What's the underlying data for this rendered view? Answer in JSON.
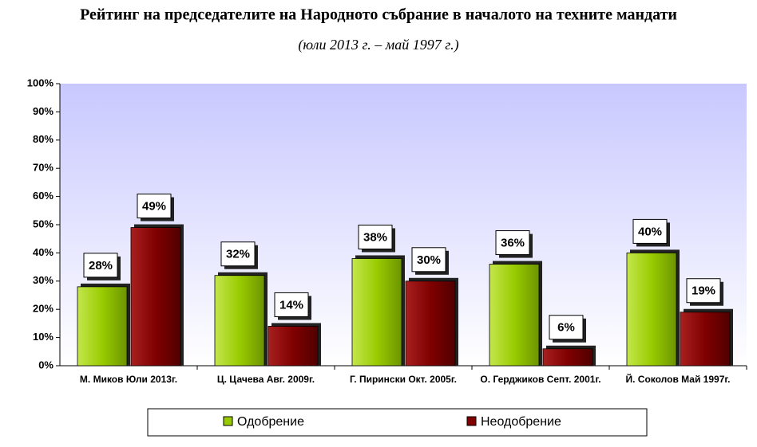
{
  "chart_data": {
    "type": "bar",
    "title": "Рейтинг на председателите на Народното събрание в началото на техните мандати",
    "subtitle": "(юли 2013 г. – май 1997 г.)",
    "categories": [
      "М. Миков Юли 2013г.",
      "Ц. Цачева Авг. 2009г.",
      "Г. Пирински Окт. 2005г.",
      "О. Герджиков Септ. 2001г.",
      "Й. Соколов Май 1997г."
    ],
    "series": [
      {
        "name": "Одобрение",
        "color": "#99cc00",
        "values": [
          28,
          32,
          38,
          36,
          40
        ],
        "value_labels": [
          "28%",
          "32%",
          "38%",
          "36%",
          "40%"
        ]
      },
      {
        "name": "Неодобрение",
        "color": "#800000",
        "values": [
          49,
          14,
          30,
          6,
          19
        ],
        "value_labels": [
          "49%",
          "14%",
          "30%",
          "6%",
          "19%"
        ]
      }
    ],
    "ylim": [
      0,
      100
    ],
    "yticks": [
      {
        "value": 0,
        "label": "0%"
      },
      {
        "value": 10,
        "label": "10%"
      },
      {
        "value": 20,
        "label": "20%"
      },
      {
        "value": 30,
        "label": "30%"
      },
      {
        "value": 40,
        "label": "40%"
      },
      {
        "value": 50,
        "label": "50%"
      },
      {
        "value": 60,
        "label": "60%"
      },
      {
        "value": 70,
        "label": "70%"
      },
      {
        "value": 80,
        "label": "80%"
      },
      {
        "value": 90,
        "label": "90%"
      },
      {
        "value": 100,
        "label": "100%"
      }
    ],
    "grid": false,
    "legend": "bottom"
  }
}
